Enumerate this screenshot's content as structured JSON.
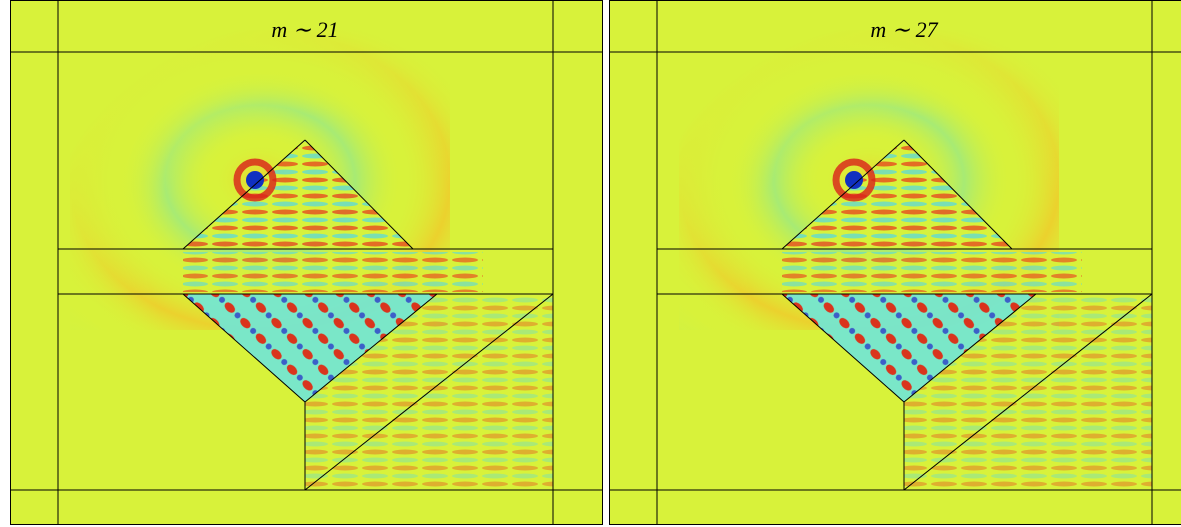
{
  "panels": [
    {
      "label": "m ∼ 21"
    },
    {
      "label": "m ∼ 27"
    }
  ]
}
